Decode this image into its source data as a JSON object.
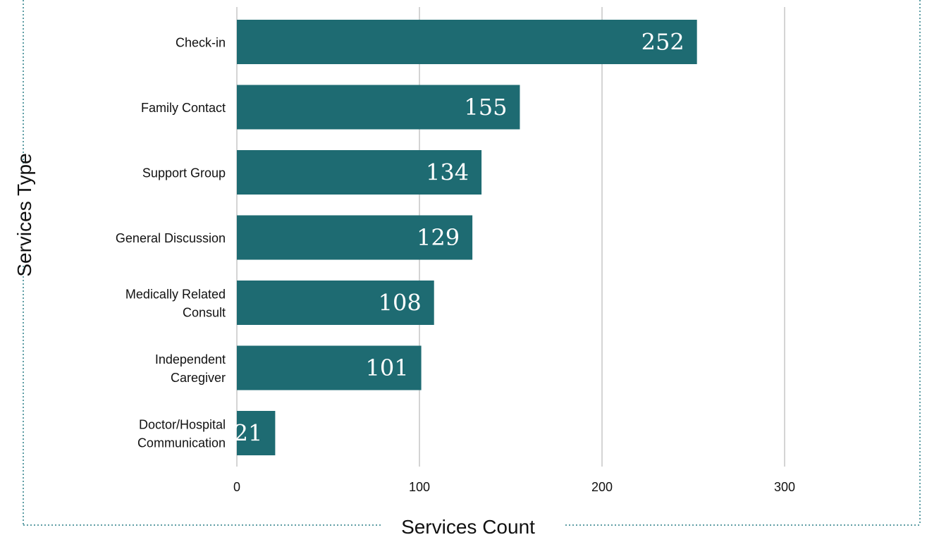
{
  "chart_data": {
    "type": "bar",
    "orientation": "horizontal",
    "categories": [
      [
        "Check-in"
      ],
      [
        "Family Contact"
      ],
      [
        "Support Group"
      ],
      [
        "General Discussion"
      ],
      [
        "Medically Related",
        "Consult"
      ],
      [
        "Independent",
        "Caregiver"
      ],
      [
        "Doctor/Hospital",
        "Communication"
      ]
    ],
    "values": [
      252,
      155,
      134,
      129,
      108,
      101,
      21
    ],
    "data_labels": [
      "252",
      "155",
      "134",
      "129",
      "108",
      "101",
      "21"
    ],
    "xlabel": "Services Count",
    "ylabel": "Services Type",
    "xlim": [
      0,
      300
    ],
    "xticks": [
      "0",
      "100",
      "200",
      "300"
    ],
    "grid": "vertical",
    "colors": {
      "bar": "#1e6b72",
      "grid": "#d4d4d4",
      "frame": "#2a7f87",
      "label_text": "#ffffff"
    }
  }
}
